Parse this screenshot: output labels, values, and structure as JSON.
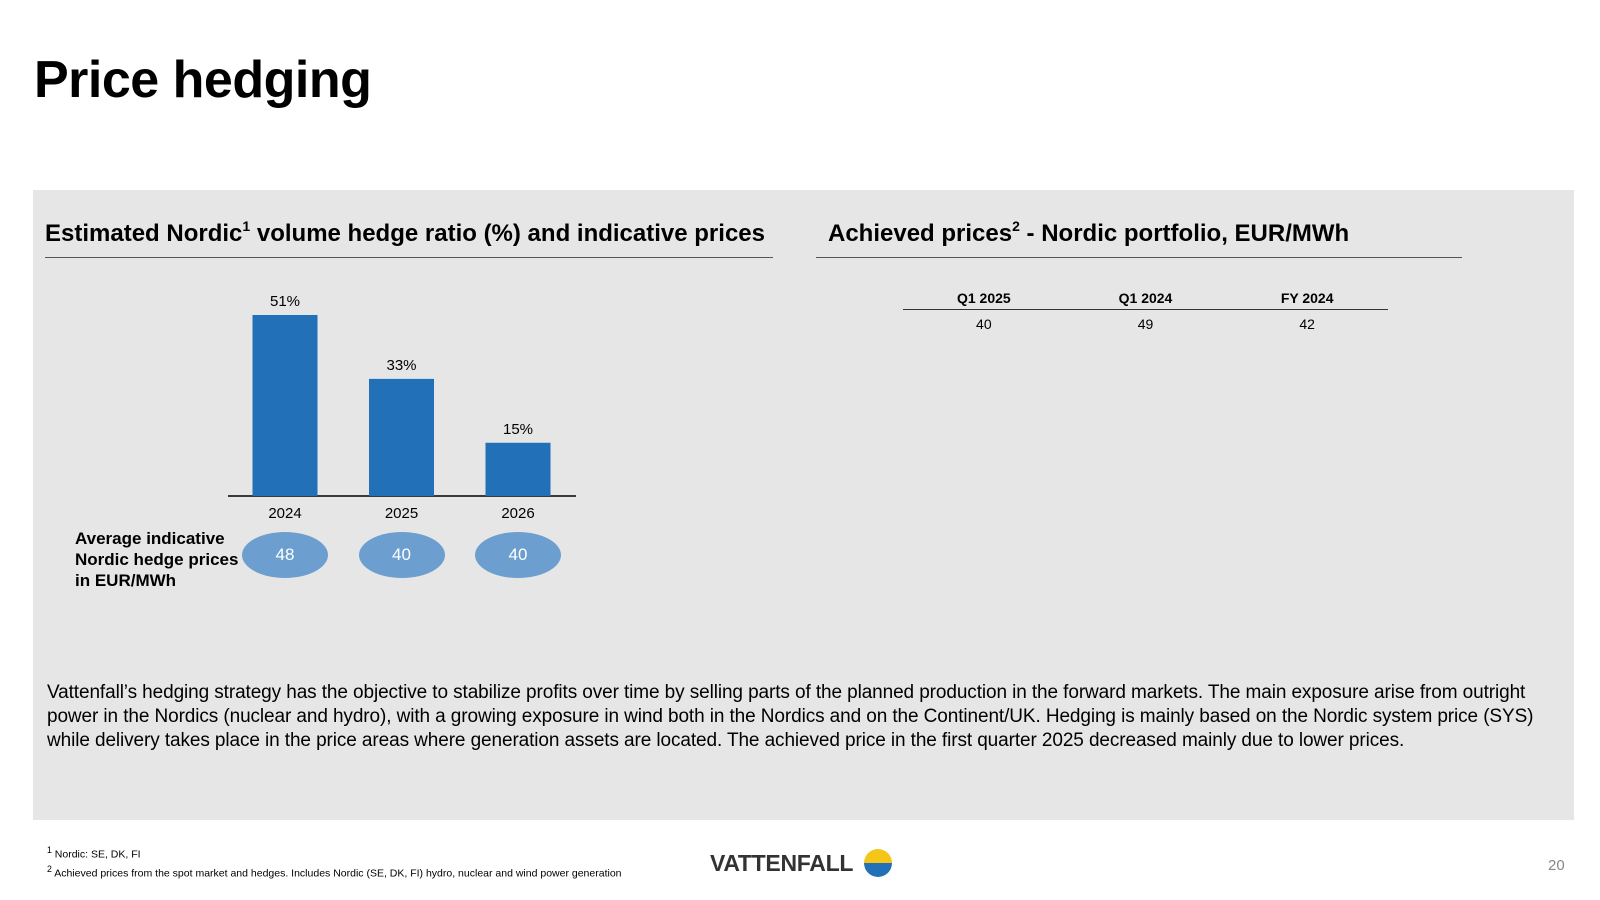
{
  "page": {
    "title": "Price hedging",
    "page_number": "20"
  },
  "left_section": {
    "title_prefix": "Estimated Nordic",
    "title_sup": "1",
    "title_suffix": " volume hedge ratio (%) and indicative prices",
    "price_label": "Average indicative Nordic hedge prices in EUR/MWh"
  },
  "right_section": {
    "title_prefix": "Achieved prices",
    "title_sup": "2",
    "title_suffix": " - Nordic portfolio, EUR/MWh",
    "table": {
      "headers": [
        "Q1 2025",
        "Q1 2024",
        "FY 2024"
      ],
      "values": [
        "40",
        "49",
        "42"
      ]
    }
  },
  "chart_data": {
    "type": "bar",
    "categories": [
      "2024",
      "2025",
      "2026"
    ],
    "values": [
      51,
      33,
      15
    ],
    "value_labels": [
      "51%",
      "33%",
      "15%"
    ],
    "ylim": [
      0,
      51
    ],
    "bar_color": "#2170b8",
    "indicative_prices": [
      "48",
      "40",
      "40"
    ],
    "indicative_price_color": "#6c9fcf"
  },
  "body_text": "Vattenfall’s hedging strategy has the objective to stabilize profits over time by selling parts of the planned production in the forward markets. The main exposure arise from outright power in the Nordics (nuclear and hydro), with a growing exposure in wind both in the Nordics and on the Continent/UK. Hedging is mainly based on the Nordic system price (SYS) while delivery takes place in the price areas where generation assets are located. The achieved price in the first quarter 2025 decreased mainly due to lower prices.",
  "footnotes": {
    "one_marker": "1",
    "one_text": " Nordic: SE, DK, FI",
    "two_marker": "2",
    "two_text": " Achieved prices from the spot market and hedges. Includes Nordic (SE, DK, FI) hydro, nuclear and wind power generation"
  },
  "logo": {
    "text": "VATTENFALL",
    "colors": {
      "top": "#f5c518",
      "bottom": "#2170b8"
    }
  }
}
